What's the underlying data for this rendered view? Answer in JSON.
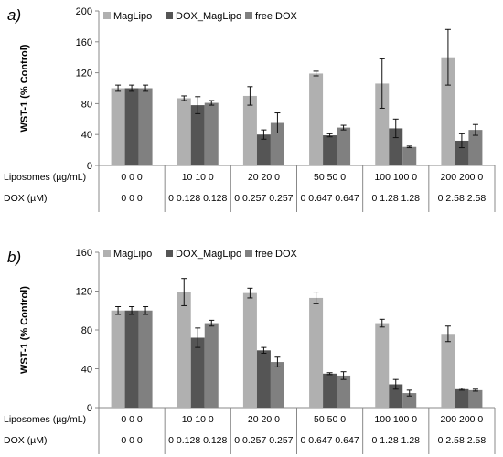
{
  "chart_data": [
    {
      "type": "bar",
      "panel_label": "a)",
      "ylabel": "WST-1 (% Control)",
      "ylim": [
        0,
        200
      ],
      "yticks": [
        0,
        40,
        80,
        120,
        160,
        200
      ],
      "grid": false,
      "legend_position": "top",
      "series": [
        {
          "name": "MagLipo",
          "color": "#b0b0b0",
          "values": [
            100,
            87,
            90,
            119,
            106,
            140
          ],
          "errors": [
            4,
            3,
            12,
            3,
            32,
            36
          ]
        },
        {
          "name": "DOX_MagLipo",
          "color": "#555555",
          "values": [
            100,
            78,
            40,
            39,
            48,
            32
          ],
          "errors": [
            4,
            11,
            6,
            2,
            12,
            9
          ]
        },
        {
          "name": "free DOX",
          "color": "#808080",
          "values": [
            100,
            81,
            55,
            49,
            24,
            46
          ],
          "errors": [
            4,
            3,
            13,
            3,
            1,
            7
          ]
        }
      ],
      "table_rows": [
        {
          "label": "Liposomes (µg/mL)",
          "cells": [
            "0 0 0",
            "10 10 0",
            "20 20 0",
            "50 50 0",
            "100 100 0",
            "200 200 0"
          ]
        },
        {
          "label": "DOX (µM)",
          "cells": [
            "0 0 0",
            "0 0.128 0.128",
            "0 0.257 0.257",
            "0 0.647 0.647",
            "0 1.28 1.28",
            "0 2.58 2.58"
          ]
        }
      ]
    },
    {
      "type": "bar",
      "panel_label": "b)",
      "ylabel": "WST-1 (% Control)",
      "ylim": [
        0,
        160
      ],
      "yticks": [
        0,
        40,
        80,
        120,
        160
      ],
      "grid": false,
      "legend_position": "top",
      "series": [
        {
          "name": "MagLipo",
          "color": "#b0b0b0",
          "values": [
            100,
            119,
            118,
            113,
            87,
            76
          ],
          "errors": [
            4,
            14,
            5,
            6,
            4,
            8
          ]
        },
        {
          "name": "DOX_MagLipo",
          "color": "#555555",
          "values": [
            100,
            72,
            59,
            35,
            24,
            19
          ],
          "errors": [
            4,
            10,
            3,
            1,
            5,
            1
          ]
        },
        {
          "name": "free DOX",
          "color": "#808080",
          "values": [
            100,
            87,
            47,
            33,
            15,
            18
          ],
          "errors": [
            4,
            3,
            5,
            4,
            3,
            1
          ]
        }
      ],
      "table_rows": [
        {
          "label": "Liposomes (µg/mL)",
          "cells": [
            "0 0 0",
            "10 10 0",
            "20 20 0",
            "50 50 0",
            "100 100 0",
            "200 200 0"
          ]
        },
        {
          "label": "DOX (µM)",
          "cells": [
            "0 0 0",
            "0 0.128 0.128",
            "0 0.257 0.257",
            "0 0.647 0.647",
            "0 1.28 1.28",
            "0 2.58 2.58"
          ]
        }
      ]
    }
  ]
}
